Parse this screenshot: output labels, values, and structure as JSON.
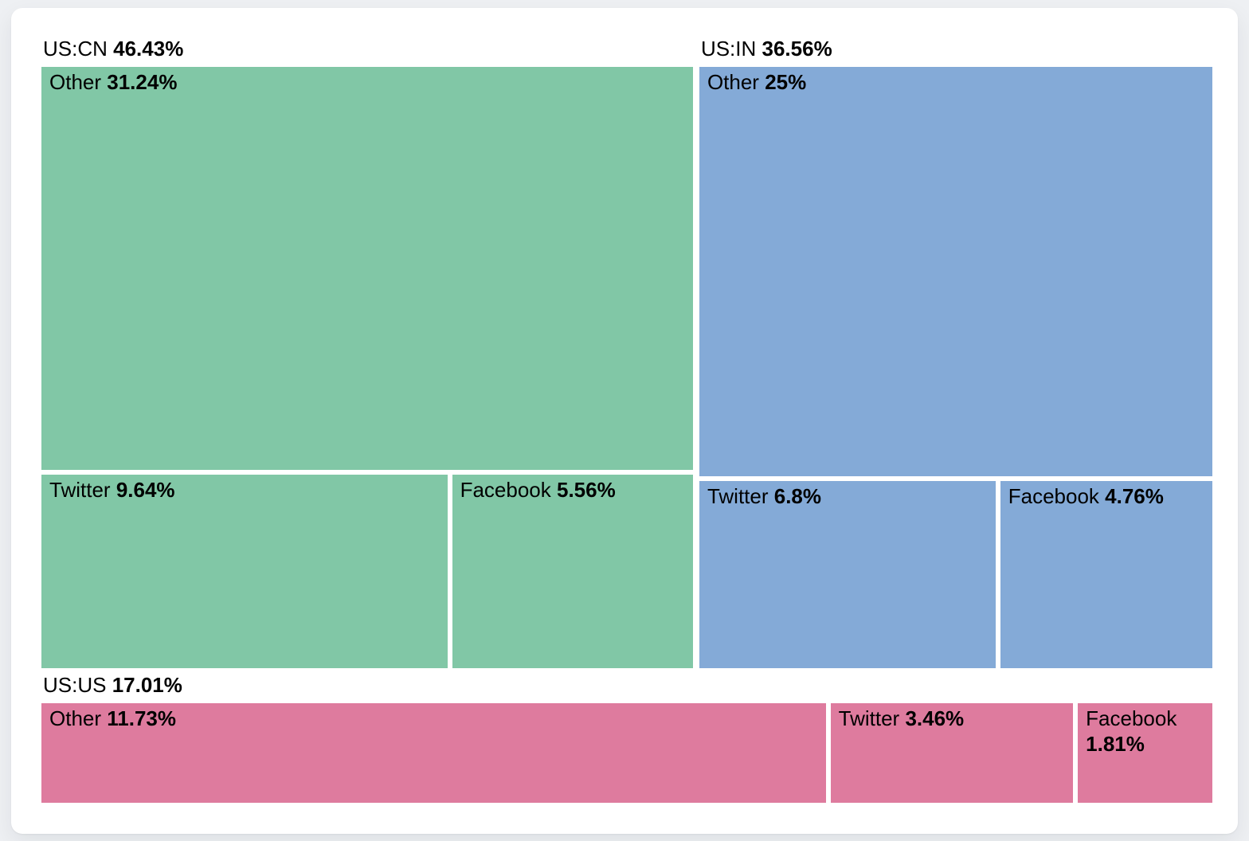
{
  "chart_data": {
    "type": "treemap",
    "title": "",
    "unit": "%",
    "legend": "none",
    "text_color": "#000000",
    "groups": [
      {
        "name": "US:CN",
        "share": "46.43%",
        "value": 46.43,
        "color": "#81c7a6",
        "children": [
          {
            "name": "Other",
            "share": "31.24%",
            "value": 31.24
          },
          {
            "name": "Twitter",
            "share": "9.64%",
            "value": 9.64
          },
          {
            "name": "Facebook",
            "share": "5.56%",
            "value": 5.56
          }
        ]
      },
      {
        "name": "US:IN",
        "share": "36.56%",
        "value": 36.56,
        "color": "#84aad7",
        "children": [
          {
            "name": "Other",
            "share": "25%",
            "value": 25.0
          },
          {
            "name": "Twitter",
            "share": "6.8%",
            "value": 6.8
          },
          {
            "name": "Facebook",
            "share": "4.76%",
            "value": 4.76
          }
        ]
      },
      {
        "name": "US:US",
        "share": "17.01%",
        "value": 17.01,
        "color": "#de7b9e",
        "children": [
          {
            "name": "Other",
            "share": "11.73%",
            "value": 11.73
          },
          {
            "name": "Twitter",
            "share": "3.46%",
            "value": 3.46
          },
          {
            "name": "Facebook",
            "share": "1.81%",
            "value": 1.81
          }
        ]
      }
    ]
  }
}
